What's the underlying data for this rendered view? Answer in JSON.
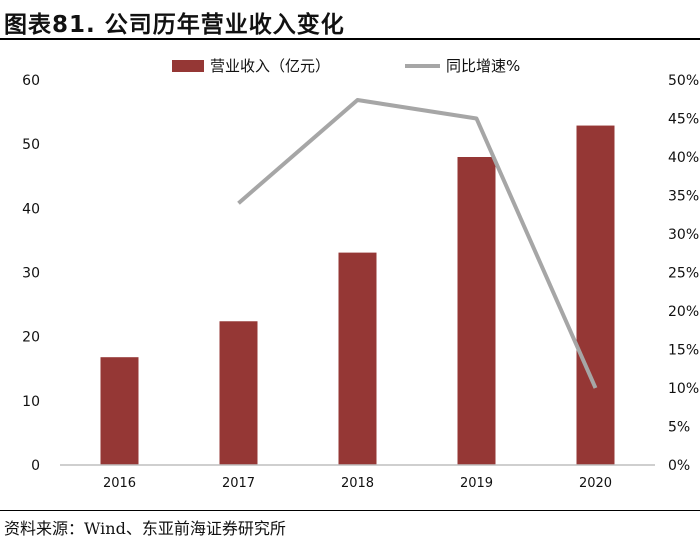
{
  "title": "图表81. 公司历年营业收入变化",
  "source": "资料来源：Wind、东亚前海证券研究所",
  "colors": {
    "bar": "#953735",
    "line": "#A6A6A6",
    "axis": "#BFBFBF"
  },
  "chart_data": {
    "type": "bar",
    "categories": [
      "2016",
      "2017",
      "2018",
      "2019",
      "2020"
    ],
    "series": [
      {
        "name": "营业收入（亿元）",
        "type": "bar",
        "axis": "left",
        "values": [
          16.8,
          22.4,
          33.1,
          48.0,
          52.9
        ]
      },
      {
        "name": "同比增速%",
        "type": "line",
        "axis": "right",
        "values": [
          null,
          34.0,
          47.4,
          45.0,
          10.0
        ]
      }
    ],
    "left_axis": {
      "min": 0,
      "max": 60,
      "ticks": [
        "0",
        "10",
        "20",
        "30",
        "40",
        "50",
        "60"
      ]
    },
    "right_axis": {
      "min": 0,
      "max": 50,
      "ticks": [
        "0%",
        "5%",
        "10%",
        "15%",
        "20%",
        "25%",
        "30%",
        "35%",
        "40%",
        "45%",
        "50%"
      ]
    },
    "legend_position": "top",
    "grid": false
  }
}
